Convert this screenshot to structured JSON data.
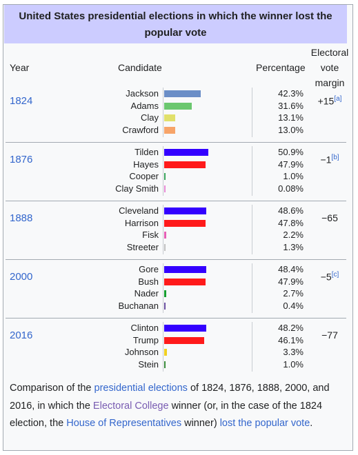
{
  "title": "United States presidential elections in which the winner lost the popular vote",
  "headers": {
    "year": "Year",
    "candidate": "Candidate",
    "percentage": "Percentage",
    "margin_lines": [
      "Electoral",
      "vote",
      "margin"
    ]
  },
  "elections": [
    {
      "year": "1824",
      "margin": "+15",
      "note": "[a]",
      "candidates": [
        {
          "name": "Jackson",
          "pct": "42.3%",
          "value": 42.3,
          "color": "#6b8ec7"
        },
        {
          "name": "Adams",
          "pct": "31.6%",
          "value": 31.6,
          "color": "#6bc76f"
        },
        {
          "name": "Clay",
          "pct": "13.1%",
          "value": 13.1,
          "color": "#e1e06b"
        },
        {
          "name": "Crawford",
          "pct": "13.0%",
          "value": 13.0,
          "color": "#f7a469"
        }
      ]
    },
    {
      "year": "1876",
      "margin": "−1",
      "note": "[b]",
      "candidates": [
        {
          "name": "Tilden",
          "pct": "50.9%",
          "value": 50.9,
          "color": "#3300ff"
        },
        {
          "name": "Hayes",
          "pct": "47.9%",
          "value": 47.9,
          "color": "#ff1a1a"
        },
        {
          "name": "Cooper",
          "pct": "1.0%",
          "value": 1.0,
          "color": "#3aa55c"
        },
        {
          "name": "Clay Smith",
          "pct": "0.08%",
          "value": 0.08,
          "color": "#e88ad5"
        }
      ]
    },
    {
      "year": "1888",
      "margin": "−65",
      "note": "",
      "candidates": [
        {
          "name": "Cleveland",
          "pct": "48.6%",
          "value": 48.6,
          "color": "#3300ff"
        },
        {
          "name": "Harrison",
          "pct": "47.8%",
          "value": 47.8,
          "color": "#ff1a1a"
        },
        {
          "name": "Fisk",
          "pct": "2.2%",
          "value": 2.2,
          "color": "#e65fb5"
        },
        {
          "name": "Streeter",
          "pct": "1.3%",
          "value": 1.3,
          "color": "#c0c0c0"
        }
      ]
    },
    {
      "year": "2000",
      "margin": "−5",
      "note": "[c]",
      "candidates": [
        {
          "name": "Gore",
          "pct": "48.4%",
          "value": 48.4,
          "color": "#3300ff"
        },
        {
          "name": "Bush",
          "pct": "47.9%",
          "value": 47.9,
          "color": "#ff1a1a"
        },
        {
          "name": "Nader",
          "pct": "2.7%",
          "value": 2.7,
          "color": "#17a030"
        },
        {
          "name": "Buchanan",
          "pct": "0.4%",
          "value": 0.4,
          "color": "#6a4fa0"
        }
      ]
    },
    {
      "year": "2016",
      "margin": "−77",
      "note": "",
      "candidates": [
        {
          "name": "Clinton",
          "pct": "48.2%",
          "value": 48.2,
          "color": "#3300ff"
        },
        {
          "name": "Trump",
          "pct": "46.1%",
          "value": 46.1,
          "color": "#ff1a1a"
        },
        {
          "name": "Johnson",
          "pct": "3.3%",
          "value": 3.3,
          "color": "#f0d020"
        },
        {
          "name": "Stein",
          "pct": "1.0%",
          "value": 1.0,
          "color": "#3a8c3a"
        }
      ]
    }
  ],
  "caption": {
    "t1": "Comparison of the ",
    "l1": "presidential elections",
    "t2": " of 1824, 1876, 1888, 2000, and 2016, in which the ",
    "l2": "Electoral College",
    "t3": " winner (or, in the case of the 1824 election, the ",
    "l3": "House of Representatives",
    "t4": " winner) ",
    "l4": "lost the popular vote",
    "t5": "."
  }
}
